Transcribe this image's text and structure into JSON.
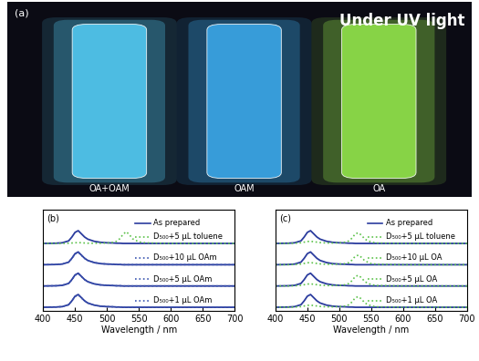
{
  "photo": {
    "label": "(a)",
    "caption": "Under UV light",
    "samples": [
      {
        "name": "OA+OAM",
        "color": "#52c8f0"
      },
      {
        "name": "OAM",
        "color": "#3aa6e6"
      },
      {
        "name": "OA",
        "color": "#8fe04a"
      }
    ]
  },
  "chart_data": [
    {
      "type": "line",
      "label": "(b)",
      "x_label": "Wavelength / nm",
      "x": [
        400,
        420,
        430,
        440,
        445,
        450,
        455,
        460,
        465,
        470,
        480,
        490,
        500,
        510,
        515,
        520,
        525,
        530,
        535,
        540,
        550,
        560,
        580,
        600,
        650,
        700
      ],
      "xlim": [
        400,
        700
      ],
      "xticks": [
        400,
        450,
        500,
        550,
        600,
        650,
        700
      ],
      "ylim": [
        -0.15,
        4.6
      ],
      "tick_labels": "x",
      "series": [
        {
          "name": "As prepared",
          "color": "#2b3c9e",
          "line_style": "solid",
          "values": [
            [
              3,
              3.01,
              3.03,
              3.12,
              3.3,
              3.52,
              3.6,
              3.45,
              3.3,
              3.2,
              3.1,
              3.05,
              3.03,
              3.02,
              3.01,
              3.01,
              3,
              3,
              3,
              3,
              3,
              3,
              3,
              3,
              3,
              3
            ],
            [
              2,
              2.01,
              2.03,
              2.12,
              2.3,
              2.52,
              2.6,
              2.45,
              2.3,
              2.2,
              2.1,
              2.05,
              2.03,
              2.02,
              2.01,
              2.01,
              2,
              2,
              2,
              2,
              2,
              2,
              2,
              2,
              2,
              2
            ],
            [
              1,
              1.01,
              1.03,
              1.12,
              1.3,
              1.52,
              1.6,
              1.45,
              1.3,
              1.2,
              1.1,
              1.05,
              1.03,
              1.02,
              1.01,
              1.01,
              1,
              1,
              1,
              1,
              1,
              1,
              1,
              1,
              1,
              1
            ],
            [
              0,
              0.01,
              0.03,
              0.12,
              0.3,
              0.52,
              0.6,
              0.45,
              0.3,
              0.2,
              0.1,
              0.05,
              0.03,
              0.02,
              0.01,
              0.01,
              0,
              0,
              0,
              0,
              0,
              0,
              0,
              0,
              0,
              0
            ]
          ]
        },
        {
          "name": "D₅₀₀+5 µL toluene",
          "color": "#5cc24a",
          "line_style": "dotted",
          "values": [
            3,
            3,
            3,
            3.01,
            3.02,
            3.03,
            3.04,
            3.03,
            3.02,
            3.01,
            3.01,
            3.01,
            3.02,
            3.05,
            3.1,
            3.22,
            3.42,
            3.55,
            3.42,
            3.22,
            3.07,
            3.03,
            3.01,
            3,
            3,
            3
          ]
        },
        {
          "name": "D₅₀₀+10 µL OAm",
          "color": "#3a55b0",
          "line_style": "dotted",
          "values": [
            2,
            2.01,
            2.03,
            2.12,
            2.29,
            2.5,
            2.58,
            2.44,
            2.3,
            2.2,
            2.1,
            2.05,
            2.03,
            2.02,
            2.01,
            2.01,
            2,
            2,
            2,
            2,
            2,
            2,
            2,
            2,
            2,
            2
          ]
        },
        {
          "name": "D₅₀₀+5 µL OAm",
          "color": "#3a55b0",
          "line_style": "dotted",
          "values": [
            1,
            1.01,
            1.03,
            1.12,
            1.29,
            1.5,
            1.58,
            1.44,
            1.3,
            1.2,
            1.1,
            1.05,
            1.03,
            1.02,
            1.01,
            1.01,
            1,
            1,
            1,
            1,
            1,
            1,
            1,
            1,
            1,
            1
          ]
        },
        {
          "name": "D₅₀₀+1 µL OAm",
          "color": "#3a55b0",
          "line_style": "dotted",
          "values": [
            0,
            0.01,
            0.03,
            0.12,
            0.29,
            0.5,
            0.58,
            0.44,
            0.3,
            0.2,
            0.1,
            0.05,
            0.03,
            0.02,
            0.01,
            0.01,
            0,
            0,
            0,
            0,
            0,
            0,
            0,
            0,
            0,
            0
          ]
        }
      ]
    },
    {
      "type": "line",
      "label": "(c)",
      "x_label": "Wavelength / nm",
      "x": [
        400,
        420,
        430,
        440,
        445,
        450,
        455,
        460,
        465,
        470,
        480,
        490,
        500,
        510,
        515,
        520,
        525,
        530,
        535,
        540,
        550,
        560,
        580,
        600,
        650,
        700
      ],
      "xlim": [
        400,
        700
      ],
      "xticks": [
        400,
        450,
        500,
        550,
        600,
        650,
        700
      ],
      "ylim": [
        -0.15,
        4.6
      ],
      "tick_labels": "x",
      "series": [
        {
          "name": "As prepared",
          "color": "#2b3c9e",
          "line_style": "solid",
          "values": [
            [
              3,
              3.01,
              3.03,
              3.12,
              3.3,
              3.52,
              3.6,
              3.45,
              3.3,
              3.2,
              3.1,
              3.05,
              3.03,
              3.02,
              3.01,
              3.01,
              3,
              3,
              3,
              3,
              3,
              3,
              3,
              3,
              3,
              3
            ],
            [
              2,
              2.01,
              2.03,
              2.12,
              2.3,
              2.52,
              2.6,
              2.45,
              2.3,
              2.2,
              2.1,
              2.05,
              2.03,
              2.02,
              2.01,
              2.01,
              2,
              2,
              2,
              2,
              2,
              2,
              2,
              2,
              2,
              2
            ],
            [
              1,
              1.01,
              1.03,
              1.12,
              1.3,
              1.52,
              1.6,
              1.45,
              1.3,
              1.2,
              1.1,
              1.05,
              1.03,
              1.02,
              1.01,
              1.01,
              1,
              1,
              1,
              1,
              1,
              1,
              1,
              1,
              1,
              1
            ],
            [
              0,
              0.01,
              0.03,
              0.12,
              0.3,
              0.52,
              0.6,
              0.45,
              0.3,
              0.2,
              0.1,
              0.05,
              0.03,
              0.02,
              0.01,
              0.01,
              0,
              0,
              0,
              0,
              0,
              0,
              0,
              0,
              0,
              0
            ]
          ]
        },
        {
          "name": "D₅₀₀+5 µL toluene",
          "color": "#5cc24a",
          "line_style": "dotted",
          "values": [
            3,
            3,
            3.01,
            3.03,
            3.06,
            3.09,
            3.1,
            3.08,
            3.06,
            3.04,
            3.02,
            3.02,
            3.03,
            3.06,
            3.12,
            3.25,
            3.45,
            3.5,
            3.38,
            3.2,
            3.06,
            3.02,
            3.01,
            3,
            3,
            3
          ]
        },
        {
          "name": "D₅₀₀+10 µL OA",
          "color": "#5cc24a",
          "line_style": "dotted",
          "values": [
            2,
            2,
            2.01,
            2.03,
            2.06,
            2.09,
            2.1,
            2.08,
            2.06,
            2.04,
            2.02,
            2.02,
            2.03,
            2.05,
            2.1,
            2.22,
            2.4,
            2.45,
            2.34,
            2.18,
            2.05,
            2.02,
            2.01,
            2,
            2,
            2
          ]
        },
        {
          "name": "D₅₀₀+5 µL OA",
          "color": "#5cc24a",
          "line_style": "dotted",
          "values": [
            1,
            1,
            1.01,
            1.03,
            1.06,
            1.09,
            1.1,
            1.08,
            1.06,
            1.04,
            1.02,
            1.02,
            1.03,
            1.06,
            1.12,
            1.25,
            1.45,
            1.5,
            1.38,
            1.2,
            1.06,
            1.02,
            1.01,
            1,
            1,
            1
          ]
        },
        {
          "name": "D₅₀₀+1 µL OA",
          "color": "#5cc24a",
          "line_style": "dotted",
          "values": [
            0,
            0,
            0.01,
            0.03,
            0.06,
            0.09,
            0.1,
            0.08,
            0.06,
            0.04,
            0.02,
            0.02,
            0.03,
            0.06,
            0.12,
            0.25,
            0.45,
            0.5,
            0.38,
            0.2,
            0.06,
            0.02,
            0.01,
            0,
            0,
            0
          ]
        }
      ]
    }
  ]
}
